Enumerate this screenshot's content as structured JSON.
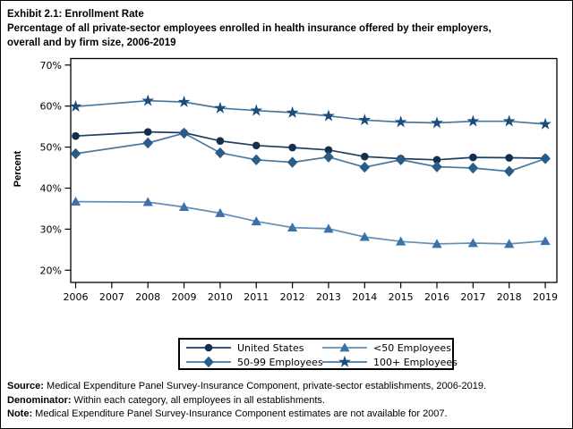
{
  "title": {
    "line1": "Exhibit 2.1: Enrollment Rate",
    "line2": "Percentage of all private-sector employees enrolled in health insurance offered by their employers,",
    "line3": "overall and by firm size, 2006-2019"
  },
  "chart_data": {
    "type": "line",
    "title": "Enrollment Rate",
    "xlabel": "",
    "ylabel": "Percent",
    "ylim": [
      20,
      70
    ],
    "x_tick_labels": [
      "2006",
      "2007",
      "2008",
      "2009",
      "2010",
      "2011",
      "2012",
      "2013",
      "2014",
      "2015",
      "2016",
      "2017",
      "2018",
      "2019"
    ],
    "y_tick_labels": [
      "20%",
      "30%",
      "40%",
      "50%",
      "60%",
      "70%"
    ],
    "grid": "off",
    "legend_position": "bottom",
    "note": "No data points for 2007",
    "series": [
      {
        "name": "United States",
        "marker": "circle",
        "marker_color": "#122F4E",
        "line_color": "#1C3F63",
        "x": [
          2006,
          2008,
          2009,
          2010,
          2011,
          2012,
          2013,
          2014,
          2015,
          2016,
          2017,
          2018,
          2019
        ],
        "values": [
          52.7,
          53.7,
          53.5,
          51.5,
          50.4,
          49.9,
          49.3,
          47.7,
          47.2,
          46.9,
          47.5,
          47.4,
          47.3
        ]
      },
      {
        "name": "50-99 Employees",
        "marker": "diamond",
        "marker_color": "#2A5C8A",
        "line_color": "#4878A0",
        "x": [
          2006,
          2008,
          2009,
          2010,
          2011,
          2012,
          2013,
          2014,
          2015,
          2016,
          2017,
          2018,
          2019
        ],
        "values": [
          48.4,
          51.0,
          53.4,
          48.6,
          46.9,
          46.3,
          47.6,
          45.1,
          46.9,
          45.2,
          44.9,
          44.1,
          47.2
        ]
      },
      {
        "name": "<50 Employees",
        "marker": "triangle",
        "marker_color": "#3B72A8",
        "line_color": "#638FB8",
        "x": [
          2006,
          2008,
          2009,
          2010,
          2011,
          2012,
          2013,
          2014,
          2015,
          2016,
          2017,
          2018,
          2019
        ],
        "values": [
          36.7,
          36.6,
          35.4,
          33.9,
          31.9,
          30.4,
          30.1,
          28.1,
          27.0,
          26.4,
          26.6,
          26.4,
          27.1
        ]
      },
      {
        "name": "100+ Employees",
        "marker": "star",
        "marker_color": "#1C4C7C",
        "line_color": "#4878A0",
        "x": [
          2006,
          2008,
          2009,
          2010,
          2011,
          2012,
          2013,
          2014,
          2015,
          2016,
          2017,
          2018,
          2019
        ],
        "values": [
          59.9,
          61.3,
          61.0,
          59.5,
          58.9,
          58.4,
          57.6,
          56.6,
          56.1,
          55.9,
          56.3,
          56.3,
          55.6
        ]
      }
    ]
  },
  "legend": {
    "items": [
      {
        "label": "United States",
        "marker": "circle"
      },
      {
        "label": "50-99 Employees",
        "marker": "diamond"
      },
      {
        "label": "<50 Employees",
        "marker": "triangle"
      },
      {
        "label": "100+ Employees",
        "marker": "star"
      }
    ]
  },
  "footnotes": [
    {
      "label": "Source:",
      "text": " Medical Expenditure Panel Survey-Insurance Component, private-sector establishments, 2006-2019."
    },
    {
      "label": "Denominator:",
      "text": " Within each category, all employees in all establishments."
    },
    {
      "label": "Note:",
      "text": " Medical Expenditure Panel Survey-Insurance Component estimates are not available for 2007."
    }
  ]
}
